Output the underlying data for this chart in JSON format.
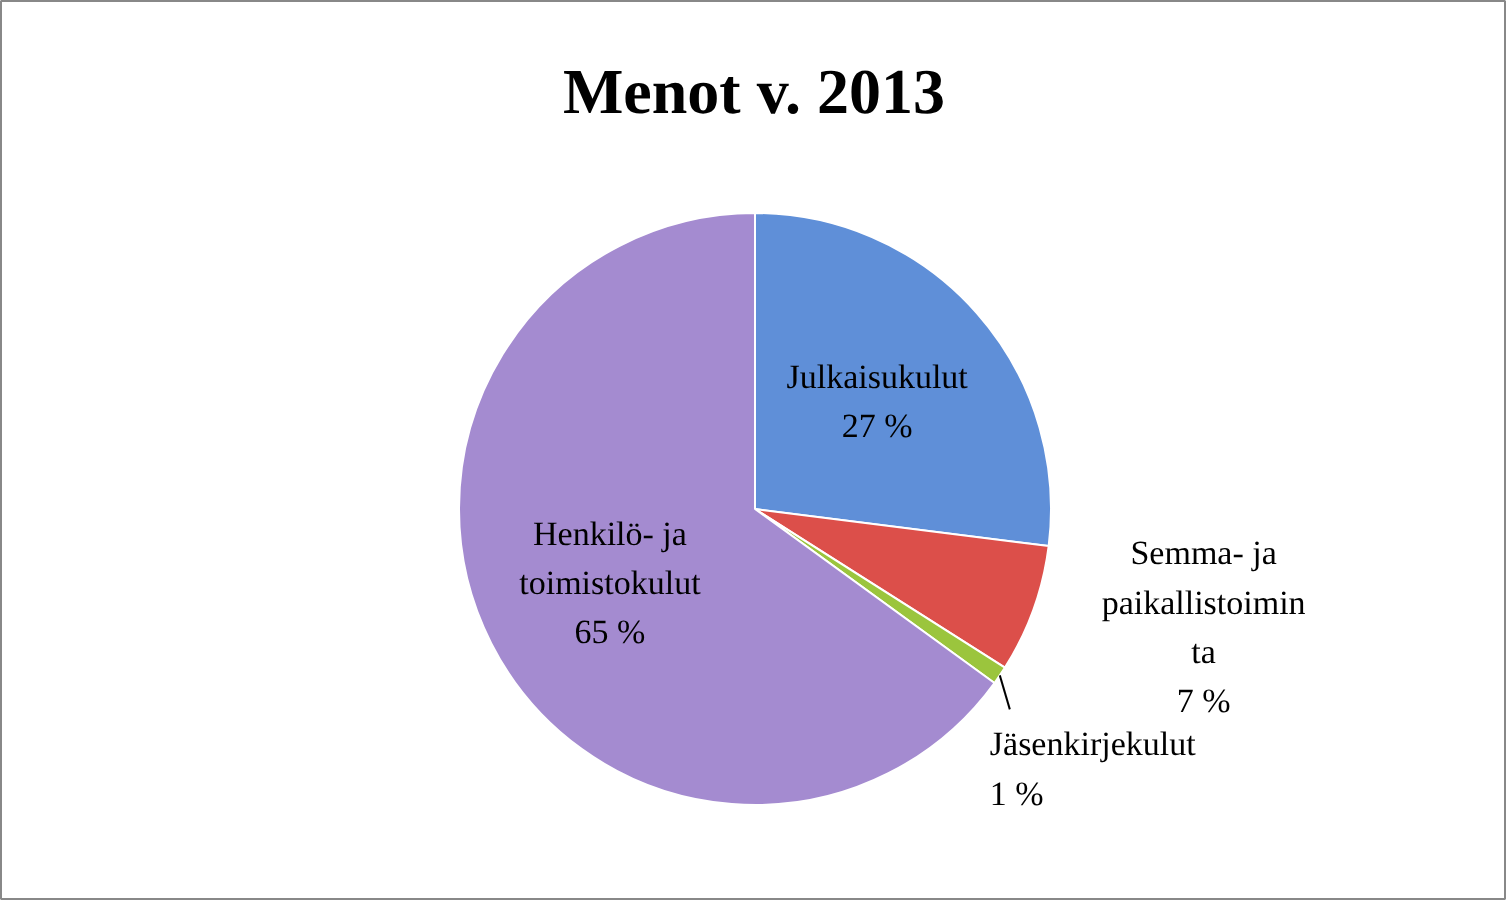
{
  "chart_data": {
    "type": "pie",
    "title": "Menot v. 2013",
    "categories": [
      "Julkaisukulut",
      "Semma- ja\npaikallistoimin\nta",
      "Jäsenkirjekulut",
      "Henkilö- ja\ntoimistokulut"
    ],
    "values": [
      27,
      7,
      1,
      65
    ],
    "value_labels": [
      "27 %",
      "7 %",
      "1 %",
      "65 %"
    ],
    "colors": [
      "#5f8fd8",
      "#dc4f4a",
      "#9bc53d",
      "#a48bd0"
    ]
  }
}
